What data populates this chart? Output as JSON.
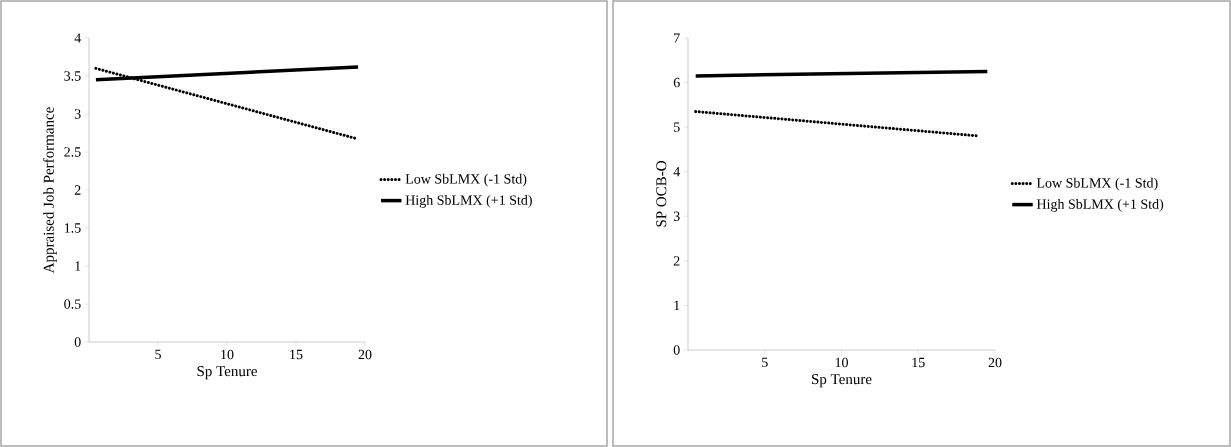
{
  "chart_data": [
    {
      "type": "line",
      "xlabel": "Sp Tenure",
      "ylabel": "Appraised Job Performance",
      "xlim": [
        0,
        20
      ],
      "xticks": [
        5,
        10,
        15,
        20
      ],
      "ylim": [
        0,
        4
      ],
      "yticks": [
        0,
        0.5,
        1,
        1.5,
        2,
        2.5,
        3,
        3.5,
        4
      ],
      "legend": "right",
      "grid": false,
      "series": [
        {
          "name": "Low SbLMX (-1 Std)",
          "color": "#000000",
          "line_style": "dotted",
          "x": [
            0.5,
            19.5
          ],
          "values": [
            3.6,
            2.67
          ]
        },
        {
          "name": "High SbLMX (+1 Std)",
          "color": "#000000",
          "line_style": "solid",
          "x": [
            0.5,
            19.5
          ],
          "values": [
            3.45,
            3.62
          ]
        }
      ]
    },
    {
      "type": "line",
      "xlabel": "Sp Tenure",
      "ylabel": "SP OCB-O",
      "xlim": [
        0,
        20
      ],
      "xticks": [
        5,
        10,
        15,
        20
      ],
      "ylim": [
        0,
        7
      ],
      "yticks": [
        0,
        1,
        2,
        3,
        4,
        5,
        6,
        7
      ],
      "legend": "right",
      "grid": false,
      "series": [
        {
          "name": "Low SbLMX (-1 Std)",
          "color": "#000000",
          "line_style": "dotted",
          "x": [
            0.5,
            19
          ],
          "values": [
            5.35,
            4.8
          ]
        },
        {
          "name": "High SbLMX (+1 Std)",
          "color": "#000000",
          "line_style": "solid",
          "x": [
            0.5,
            19.5
          ],
          "values": [
            6.15,
            6.25
          ]
        }
      ]
    }
  ]
}
